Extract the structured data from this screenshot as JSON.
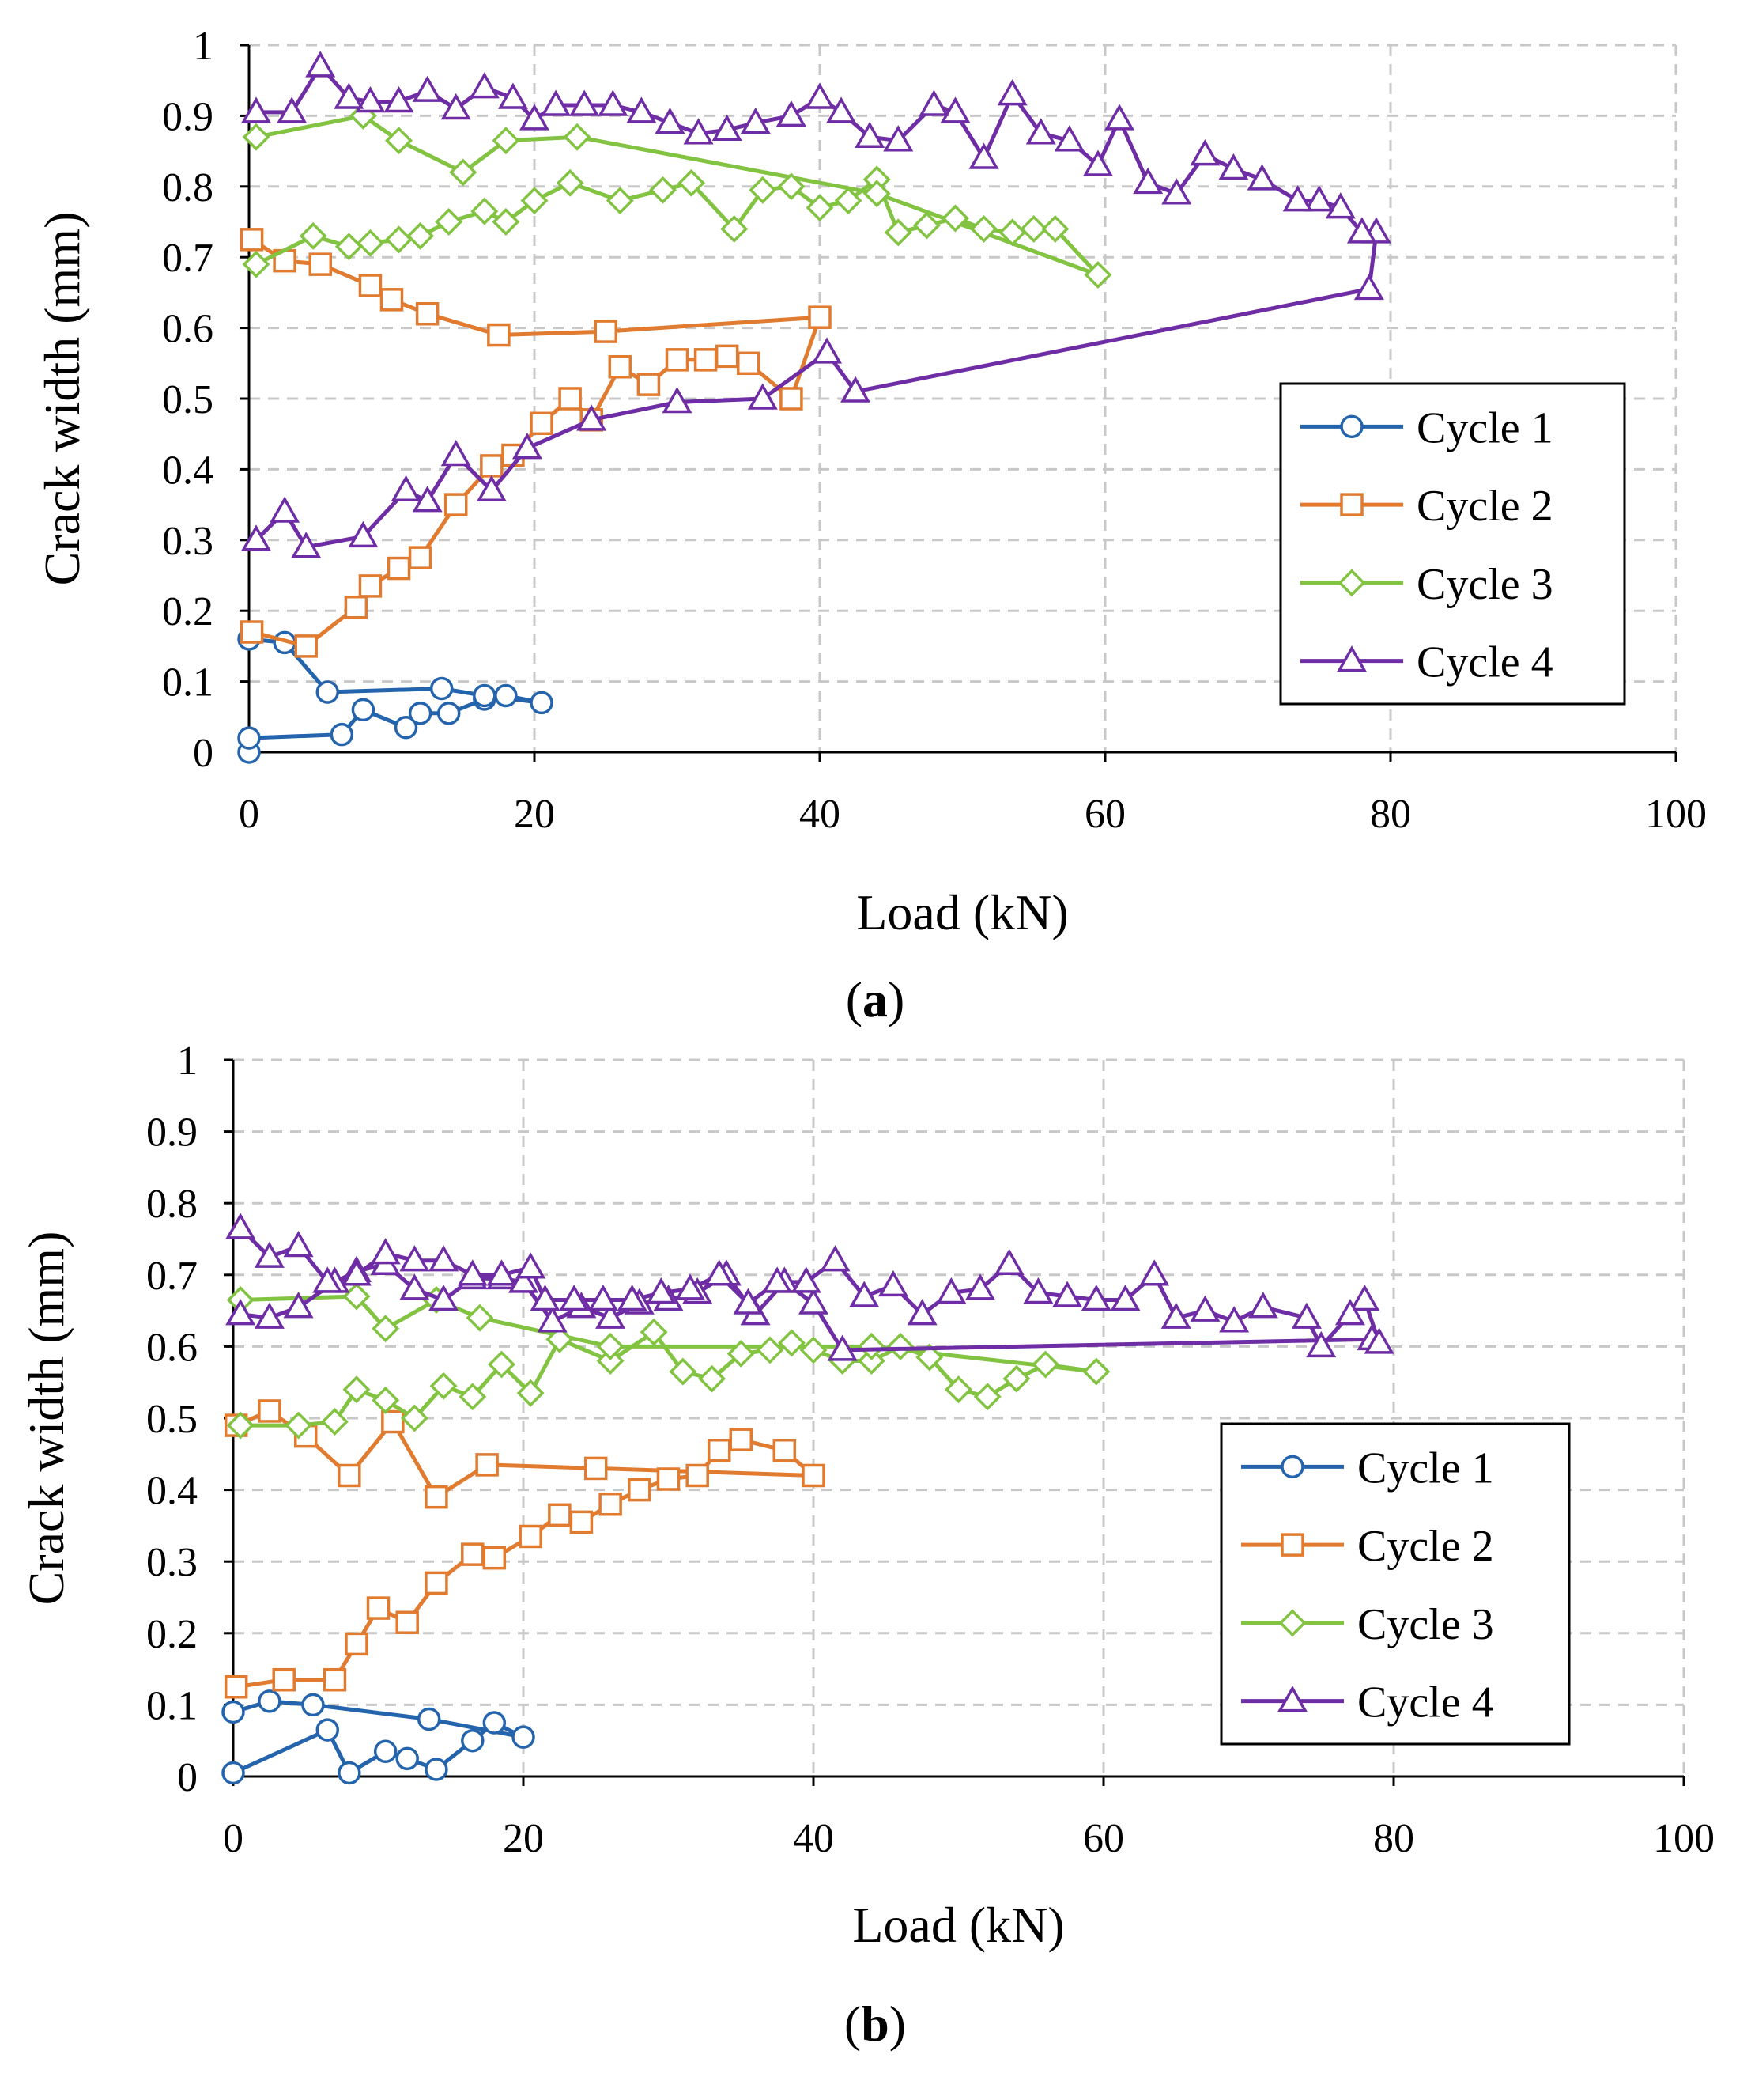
{
  "panels": [
    {
      "label_open": "(",
      "label_letter": "a",
      "label_close": ")"
    },
    {
      "label_open": "(",
      "label_letter": "b",
      "label_close": ")"
    }
  ],
  "chart_data": [
    {
      "type": "line",
      "title": "",
      "xlabel": "Load (kN)",
      "ylabel": "Crack width (mm)",
      "xlim": [
        0,
        100
      ],
      "ylim": [
        0,
        1
      ],
      "xticks": [
        0,
        20,
        40,
        60,
        80,
        100
      ],
      "yticks": [
        0,
        0.1,
        0.2,
        0.3,
        0.4,
        0.5,
        0.6,
        0.7,
        0.8,
        0.9,
        1
      ],
      "xtick_labels": [
        "0",
        "20",
        "40",
        "60",
        "80",
        "100"
      ],
      "ytick_labels": [
        "0",
        "0.1",
        "0.2",
        "0.3",
        "0.4",
        "0.5",
        "0.6",
        "0.7",
        "0.8",
        "0.9",
        "1"
      ],
      "grid": true,
      "legend_position": "right-middle",
      "series": [
        {
          "name": "Cycle 1",
          "marker": "circle",
          "color": "#2464ad",
          "x": [
            0,
            0,
            6.5,
            8,
            11,
            12,
            14,
            16.5,
            18,
            20.5,
            16.5,
            13.5,
            5.5,
            2.5,
            0
          ],
          "y": [
            0,
            0.02,
            0.025,
            0.06,
            0.035,
            0.055,
            0.055,
            0.075,
            0.08,
            0.07,
            0.08,
            0.09,
            0.085,
            0.155,
            0.16
          ]
        },
        {
          "name": "Cycle 2",
          "marker": "square",
          "color": "#e07b30",
          "x": [
            0.2,
            4,
            7.5,
            8.5,
            10.5,
            12,
            14.5,
            17,
            18.5,
            20.5,
            22.5,
            24,
            26,
            28,
            30,
            32,
            33.5,
            35,
            38,
            40,
            25,
            17.5,
            12.5,
            10,
            8.5,
            5,
            2.5,
            0.2
          ],
          "y": [
            0.17,
            0.15,
            0.205,
            0.235,
            0.26,
            0.275,
            0.35,
            0.405,
            0.42,
            0.465,
            0.5,
            0.47,
            0.545,
            0.52,
            0.555,
            0.555,
            0.56,
            0.55,
            0.5,
            0.615,
            0.595,
            0.59,
            0.62,
            0.64,
            0.66,
            0.69,
            0.695,
            0.725
          ]
        },
        {
          "name": "Cycle 3",
          "marker": "diamond",
          "color": "#82c341",
          "x": [
            0.5,
            4.5,
            7,
            8.5,
            10.5,
            12,
            14,
            16.5,
            18,
            20,
            22.5,
            26,
            29,
            31,
            34,
            36,
            38,
            40,
            42,
            44,
            45.5,
            47.5,
            49.5,
            51.5,
            53.5,
            55,
            56.5,
            59.5,
            44,
            23,
            18,
            15,
            10.5,
            8,
            0.5
          ],
          "y": [
            0.69,
            0.73,
            0.715,
            0.72,
            0.725,
            0.73,
            0.75,
            0.765,
            0.75,
            0.78,
            0.805,
            0.78,
            0.795,
            0.805,
            0.74,
            0.795,
            0.8,
            0.77,
            0.78,
            0.81,
            0.735,
            0.745,
            0.755,
            0.74,
            0.735,
            0.74,
            0.74,
            0.675,
            0.79,
            0.87,
            0.865,
            0.82,
            0.865,
            0.9,
            0.87
          ]
        },
        {
          "name": "Cycle 4",
          "marker": "triangle",
          "color": "#6e2da5",
          "x": [
            0.5,
            2.5,
            4,
            8,
            11,
            12.5,
            14.5,
            17,
            19.5,
            24,
            30,
            36,
            40.5,
            42.5,
            78.5,
            79,
            78,
            76.5,
            75,
            73.5,
            71,
            69,
            67,
            65,
            63,
            61,
            59.5,
            57.5,
            55.5,
            53.5,
            51.5,
            49.5,
            48,
            45.5,
            43.5,
            41.5,
            40,
            38,
            35.5,
            33.5,
            31.5,
            29.5,
            27.5,
            25.5,
            23.5,
            21.5,
            20,
            18.5,
            16.5,
            14.5,
            12.5,
            10.5,
            8.5,
            7,
            5,
            3,
            0.5
          ],
          "y": [
            0.3,
            0.34,
            0.29,
            0.305,
            0.37,
            0.355,
            0.42,
            0.37,
            0.43,
            0.47,
            0.495,
            0.5,
            0.565,
            0.51,
            0.655,
            0.735,
            0.735,
            0.77,
            0.78,
            0.78,
            0.81,
            0.825,
            0.845,
            0.79,
            0.805,
            0.895,
            0.83,
            0.865,
            0.875,
            0.93,
            0.84,
            0.905,
            0.915,
            0.865,
            0.87,
            0.905,
            0.925,
            0.9,
            0.89,
            0.88,
            0.875,
            0.89,
            0.905,
            0.915,
            0.915,
            0.915,
            0.895,
            0.925,
            0.94,
            0.91,
            0.935,
            0.92,
            0.92,
            0.925,
            0.97,
            0.905,
            0.905
          ]
        }
      ]
    },
    {
      "type": "line",
      "title": "",
      "xlabel": "Load (kN)",
      "ylabel": "Crack width (mm)",
      "xlim": [
        0,
        100
      ],
      "ylim": [
        0,
        1
      ],
      "xticks": [
        0,
        20,
        40,
        60,
        80,
        100
      ],
      "yticks": [
        0,
        0.1,
        0.2,
        0.3,
        0.4,
        0.5,
        0.6,
        0.7,
        0.8,
        0.9,
        1
      ],
      "xtick_labels": [
        "0",
        "20",
        "40",
        "60",
        "80",
        "100"
      ],
      "ytick_labels": [
        "0",
        "0.1",
        "0.2",
        "0.3",
        "0.4",
        "0.5",
        "0.6",
        "0.7",
        "0.8",
        "0.9",
        "1"
      ],
      "grid": true,
      "legend_position": "right-middle",
      "series": [
        {
          "name": "Cycle 1",
          "marker": "circle",
          "color": "#2464ad",
          "x": [
            0,
            6.5,
            8,
            10.5,
            12,
            14,
            16.5,
            18,
            20,
            13.5,
            5.5,
            2.5,
            0
          ],
          "y": [
            0.005,
            0.065,
            0.005,
            0.035,
            0.025,
            0.01,
            0.05,
            0.075,
            0.055,
            0.08,
            0.1,
            0.105,
            0.09
          ]
        },
        {
          "name": "Cycle 2",
          "marker": "square",
          "color": "#e07b30",
          "x": [
            0.2,
            3.5,
            7,
            8.5,
            10,
            12,
            14,
            16.5,
            18,
            20.5,
            22.5,
            24,
            26,
            28,
            30,
            32,
            33.5,
            35,
            38,
            40,
            25,
            17.5,
            14,
            11,
            8,
            5,
            2.5,
            0.2
          ],
          "y": [
            0.125,
            0.135,
            0.135,
            0.185,
            0.235,
            0.215,
            0.27,
            0.31,
            0.305,
            0.335,
            0.365,
            0.355,
            0.38,
            0.4,
            0.415,
            0.42,
            0.455,
            0.47,
            0.455,
            0.42,
            0.43,
            0.435,
            0.39,
            0.495,
            0.42,
            0.475,
            0.51,
            0.49
          ]
        },
        {
          "name": "Cycle 3",
          "marker": "diamond",
          "color": "#82c341",
          "x": [
            0.5,
            4.5,
            7,
            8.5,
            10.5,
            12.5,
            14.5,
            16.5,
            18.5,
            20.5,
            22.5,
            26,
            29,
            31,
            33,
            35,
            37,
            38.5,
            40,
            42,
            44,
            46,
            48,
            50,
            52,
            54,
            56,
            59.5,
            44,
            26,
            17,
            14,
            10.5,
            8.5,
            0.5
          ],
          "y": [
            0.49,
            0.49,
            0.495,
            0.54,
            0.525,
            0.5,
            0.545,
            0.53,
            0.575,
            0.535,
            0.61,
            0.58,
            0.62,
            0.565,
            0.555,
            0.59,
            0.595,
            0.605,
            0.595,
            0.58,
            0.58,
            0.6,
            0.585,
            0.54,
            0.53,
            0.555,
            0.575,
            0.565,
            0.6,
            0.6,
            0.64,
            0.665,
            0.625,
            0.67,
            0.665
          ]
        },
        {
          "name": "Cycle 4",
          "marker": "triangle",
          "color": "#6e2da5",
          "x": [
            0.5,
            2.5,
            4.5,
            7,
            8.5,
            10.5,
            12.5,
            14.5,
            16.5,
            18.5,
            20,
            22,
            24,
            26,
            28,
            30,
            32,
            34,
            36,
            38,
            40,
            42,
            78.5,
            79,
            78,
            77,
            75,
            74,
            71,
            69,
            67,
            65,
            63.5,
            61.5,
            59.5,
            57.5,
            55.5,
            53.5,
            51.5,
            49.5,
            47.5,
            45.5,
            43.5,
            41.5,
            39.5,
            37.5,
            35.5,
            33.5,
            31.5,
            29.5,
            27.5,
            25.5,
            23.5,
            21.5,
            20.5,
            18.5,
            16.5,
            14.5,
            12.5,
            10.5,
            8.5,
            6.5,
            4.5,
            2.5,
            0.5
          ],
          "y": [
            0.645,
            0.64,
            0.655,
            0.69,
            0.705,
            0.715,
            0.68,
            0.665,
            0.695,
            0.695,
            0.69,
            0.635,
            0.655,
            0.64,
            0.66,
            0.665,
            0.675,
            0.7,
            0.645,
            0.69,
            0.66,
            0.595,
            0.61,
            0.605,
            0.665,
            0.645,
            0.6,
            0.64,
            0.655,
            0.635,
            0.65,
            0.64,
            0.7,
            0.665,
            0.665,
            0.67,
            0.675,
            0.715,
            0.68,
            0.675,
            0.645,
            0.685,
            0.67,
            0.72,
            0.69,
            0.69,
            0.66,
            0.7,
            0.68,
            0.675,
            0.665,
            0.665,
            0.665,
            0.665,
            0.71,
            0.7,
            0.7,
            0.72,
            0.72,
            0.73,
            0.7,
            0.69,
            0.74,
            0.725,
            0.765
          ]
        }
      ]
    }
  ]
}
